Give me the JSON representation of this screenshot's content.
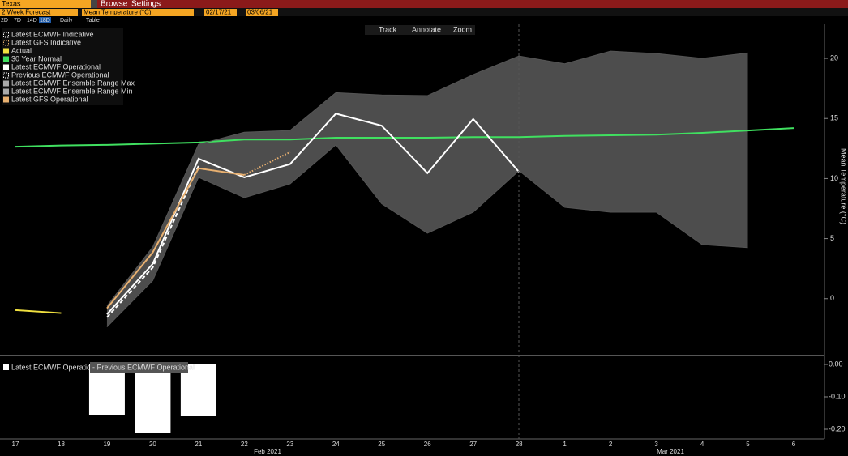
{
  "toolbar": {
    "location": "Texas",
    "menu": [
      "Browse",
      "Settings"
    ],
    "forecast": "2 Week Forecast",
    "measure": "Mean Temperature (°C)",
    "start": "02/17/21",
    "end": "03/06/21",
    "ranges": [
      "2D",
      "7D",
      "14D",
      "18D"
    ],
    "selected_range": 3,
    "frequency": "Daily",
    "table": "Table"
  },
  "tools": [
    "Track",
    "Annotate",
    "Zoom"
  ],
  "chart_data": [
    {
      "type": "line",
      "y_label": "Mean Temperature (°C)",
      "categories": [
        "17",
        "18",
        "19",
        "20",
        "21",
        "22",
        "23",
        "24",
        "25",
        "26",
        "27",
        "28",
        "1",
        "2",
        "3",
        "4",
        "5",
        "6"
      ],
      "month_labels": [
        "Feb 2021",
        "Mar 2021"
      ],
      "ylim": [
        -4.6,
        22.7
      ],
      "yticks": [
        0,
        5,
        10,
        15,
        20
      ],
      "series": [
        {
          "name": "Latest ECMWF Indicative",
          "color": "#ffffff",
          "line_style": "dashed",
          "values": [
            null,
            null,
            null,
            null,
            null,
            null,
            null,
            null,
            null,
            null,
            null,
            null,
            null,
            null,
            null,
            null,
            null,
            null
          ]
        },
        {
          "name": "Latest GFS Indicative",
          "color": "#e8b070",
          "line_style": "dotted",
          "values": [
            null,
            null,
            null,
            null,
            null,
            10.3,
            12.2,
            null,
            null,
            null,
            null,
            null,
            null,
            null,
            null,
            null,
            null,
            null
          ]
        },
        {
          "name": "Actual",
          "color": "#f0e040",
          "line_style": "solid",
          "values": [
            -0.95,
            -1.2,
            null,
            null,
            null,
            null,
            null,
            null,
            null,
            null,
            null,
            null,
            null,
            null,
            null,
            null,
            null,
            null
          ]
        },
        {
          "name": "30 Year Normal",
          "color": "#40e060",
          "line_style": "solid",
          "values": [
            12.65,
            12.75,
            12.8,
            12.9,
            13.0,
            13.25,
            13.25,
            13.4,
            13.4,
            13.4,
            13.45,
            13.45,
            13.55,
            13.6,
            13.65,
            13.8,
            14.0,
            14.2
          ]
        },
        {
          "name": "Latest ECMWF Operational",
          "color": "#ffffff",
          "line_style": "solid",
          "values": [
            null,
            null,
            -1.3,
            2.9,
            11.65,
            10.1,
            11.2,
            15.4,
            14.4,
            10.45,
            14.95,
            10.55,
            null,
            null,
            null,
            null,
            null,
            null
          ]
        },
        {
          "name": "Previous ECMWF Operational",
          "color": "#ffffff",
          "line_style": "dashed",
          "values": [
            null,
            null,
            -1.55,
            2.6,
            11.05,
            null,
            null,
            null,
            null,
            null,
            null,
            null,
            null,
            null,
            null,
            null,
            null,
            null
          ]
        },
        {
          "name": "Latest ECMWF Ensemble Range Max",
          "color": "#555555",
          "line_style": "band",
          "values": [
            null,
            null,
            -0.6,
            4.3,
            12.85,
            13.85,
            14.0,
            17.15,
            16.95,
            16.9,
            18.65,
            20.2,
            19.55,
            20.6,
            20.4,
            20.0,
            20.45,
            null
          ]
        },
        {
          "name": "Latest ECMWF Ensemble Range Min",
          "color": "#555555",
          "line_style": "band",
          "values": [
            null,
            null,
            -2.35,
            1.5,
            10.1,
            8.4,
            9.55,
            12.8,
            7.9,
            5.45,
            7.2,
            10.65,
            7.6,
            7.2,
            7.2,
            4.5,
            4.25,
            null
          ]
        },
        {
          "name": "Latest GFS Operational",
          "color": "#e8b070",
          "line_style": "solid",
          "values": [
            null,
            null,
            -0.8,
            3.85,
            10.85,
            10.3,
            null,
            null,
            null,
            null,
            null,
            null,
            null,
            null,
            null,
            null,
            null,
            null
          ]
        }
      ]
    },
    {
      "type": "bar",
      "ylim": [
        -0.225,
        0.02
      ],
      "yticks": [
        {
          "value": 0,
          "label": "0.00"
        },
        {
          "value": -0.1,
          "label": "-0.10"
        },
        {
          "value": -0.2,
          "label": "-0.20"
        }
      ],
      "series": [
        {
          "name": "Latest ECMWF Operational",
          "color": "#ffffff",
          "values": [
            null,
            null,
            -0.155,
            -0.21,
            -0.158,
            null,
            null,
            null,
            null,
            null,
            null,
            null,
            null,
            null,
            null,
            null,
            null,
            null
          ]
        }
      ],
      "difference_label": "- Previous ECMWF Operational"
    }
  ]
}
